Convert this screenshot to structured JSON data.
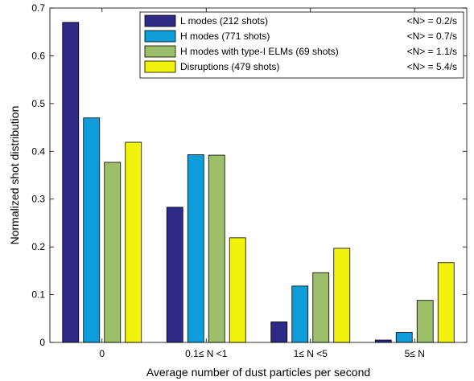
{
  "chart_data": {
    "type": "bar",
    "xlabel": "Average number of dust particles per second",
    "ylabel": "Normalized shot distribution",
    "ylim": [
      0,
      0.7
    ],
    "yticks": [
      "0",
      "0.1",
      "0.2",
      "0.3",
      "0.4",
      "0.5",
      "0.6",
      "0.7"
    ],
    "grid": false,
    "legend_position": "top-right",
    "categories": [
      "0",
      "0.1≤ N <1",
      "1≤ N <5",
      "5≤ N"
    ],
    "series": [
      {
        "name": "L modes   (212 shots)",
        "stat": "<N> = 0.2/s",
        "color": "#2e2a86",
        "values": [
          0.67,
          0.283,
          0.043,
          0.005
        ]
      },
      {
        "name": "H modes   (771 shots)",
        "stat": "<N> = 0.7/s",
        "color": "#0f9dd9",
        "values": [
          0.47,
          0.393,
          0.118,
          0.021
        ]
      },
      {
        "name": "H modes with type-I ELMs   (69 shots)",
        "stat": "<N> = 1.1/s",
        "color": "#9dbf6a",
        "values": [
          0.377,
          0.392,
          0.146,
          0.088
        ]
      },
      {
        "name": "Disruptions   (479 shots)",
        "stat": "<N> = 5.4/s",
        "color": "#f2f20a",
        "values": [
          0.419,
          0.219,
          0.197,
          0.167
        ]
      }
    ]
  }
}
